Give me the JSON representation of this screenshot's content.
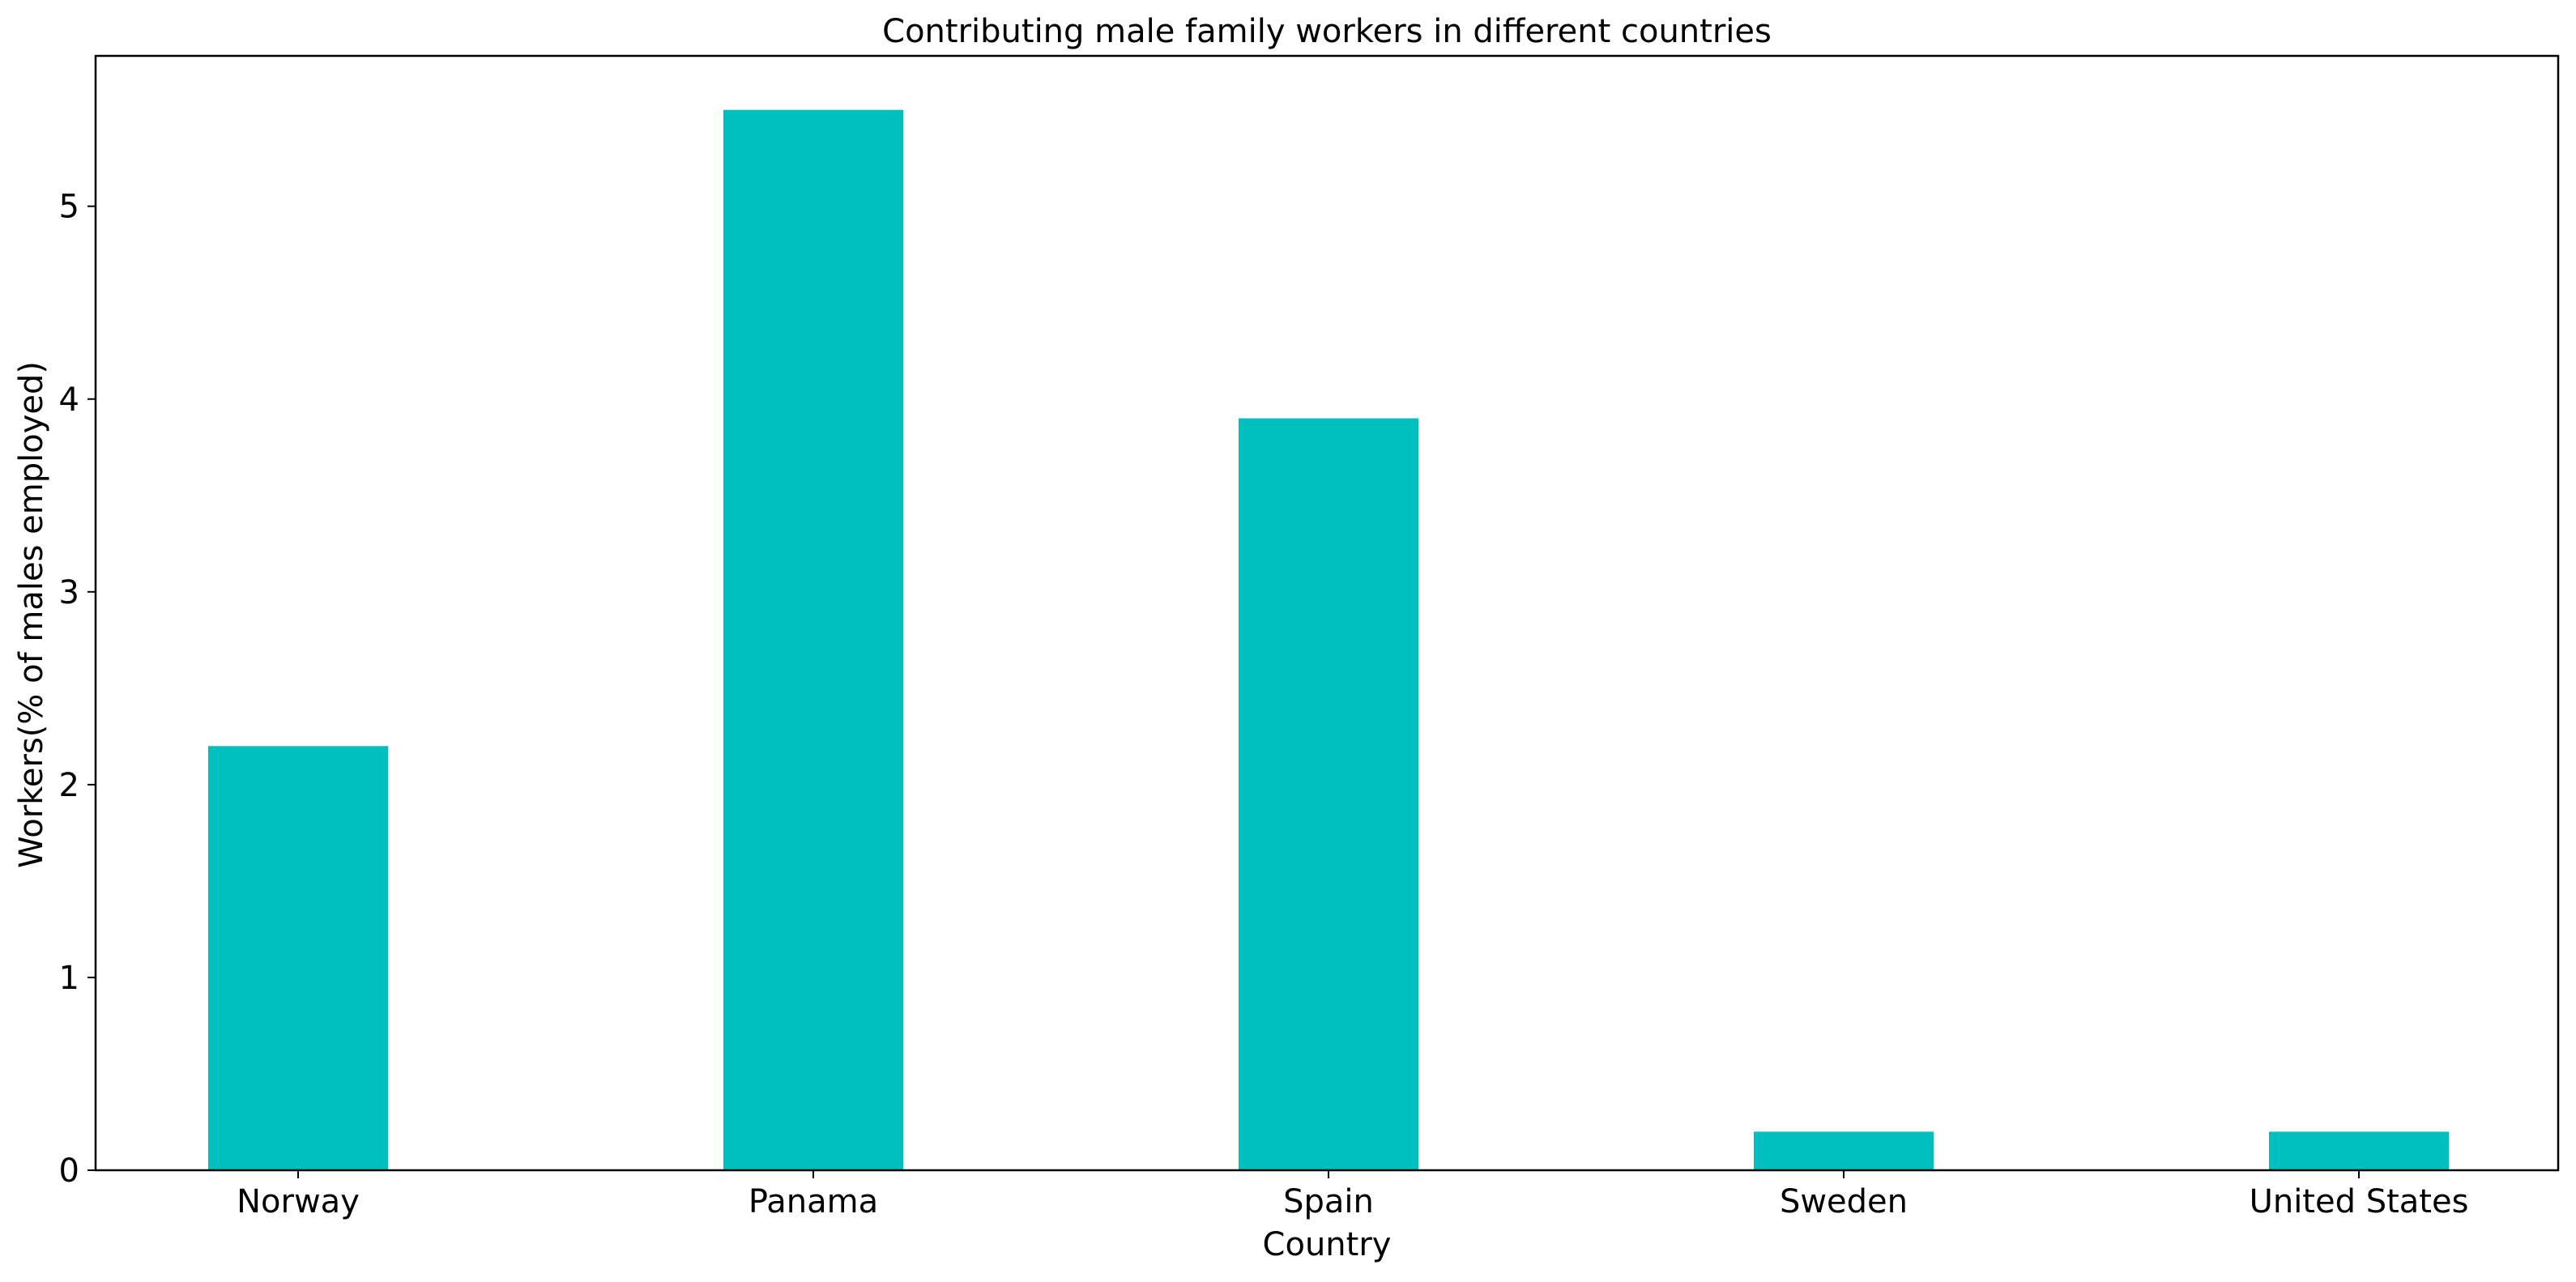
{
  "chart_data": {
    "type": "bar",
    "title": "Contributing male family workers in different countries",
    "xlabel": "Country",
    "ylabel": "Workers(% of males employed)",
    "categories": [
      "Norway",
      "Panama",
      "Spain",
      "Sweden",
      "United States"
    ],
    "values": [
      2.2,
      5.5,
      3.9,
      0.2,
      0.2
    ],
    "ylim": [
      0,
      5.78
    ],
    "yticks": [
      "0",
      "1",
      "2",
      "3",
      "4",
      "5"
    ],
    "grid": false,
    "legend": "none",
    "bar_color": "#00bfbf"
  }
}
